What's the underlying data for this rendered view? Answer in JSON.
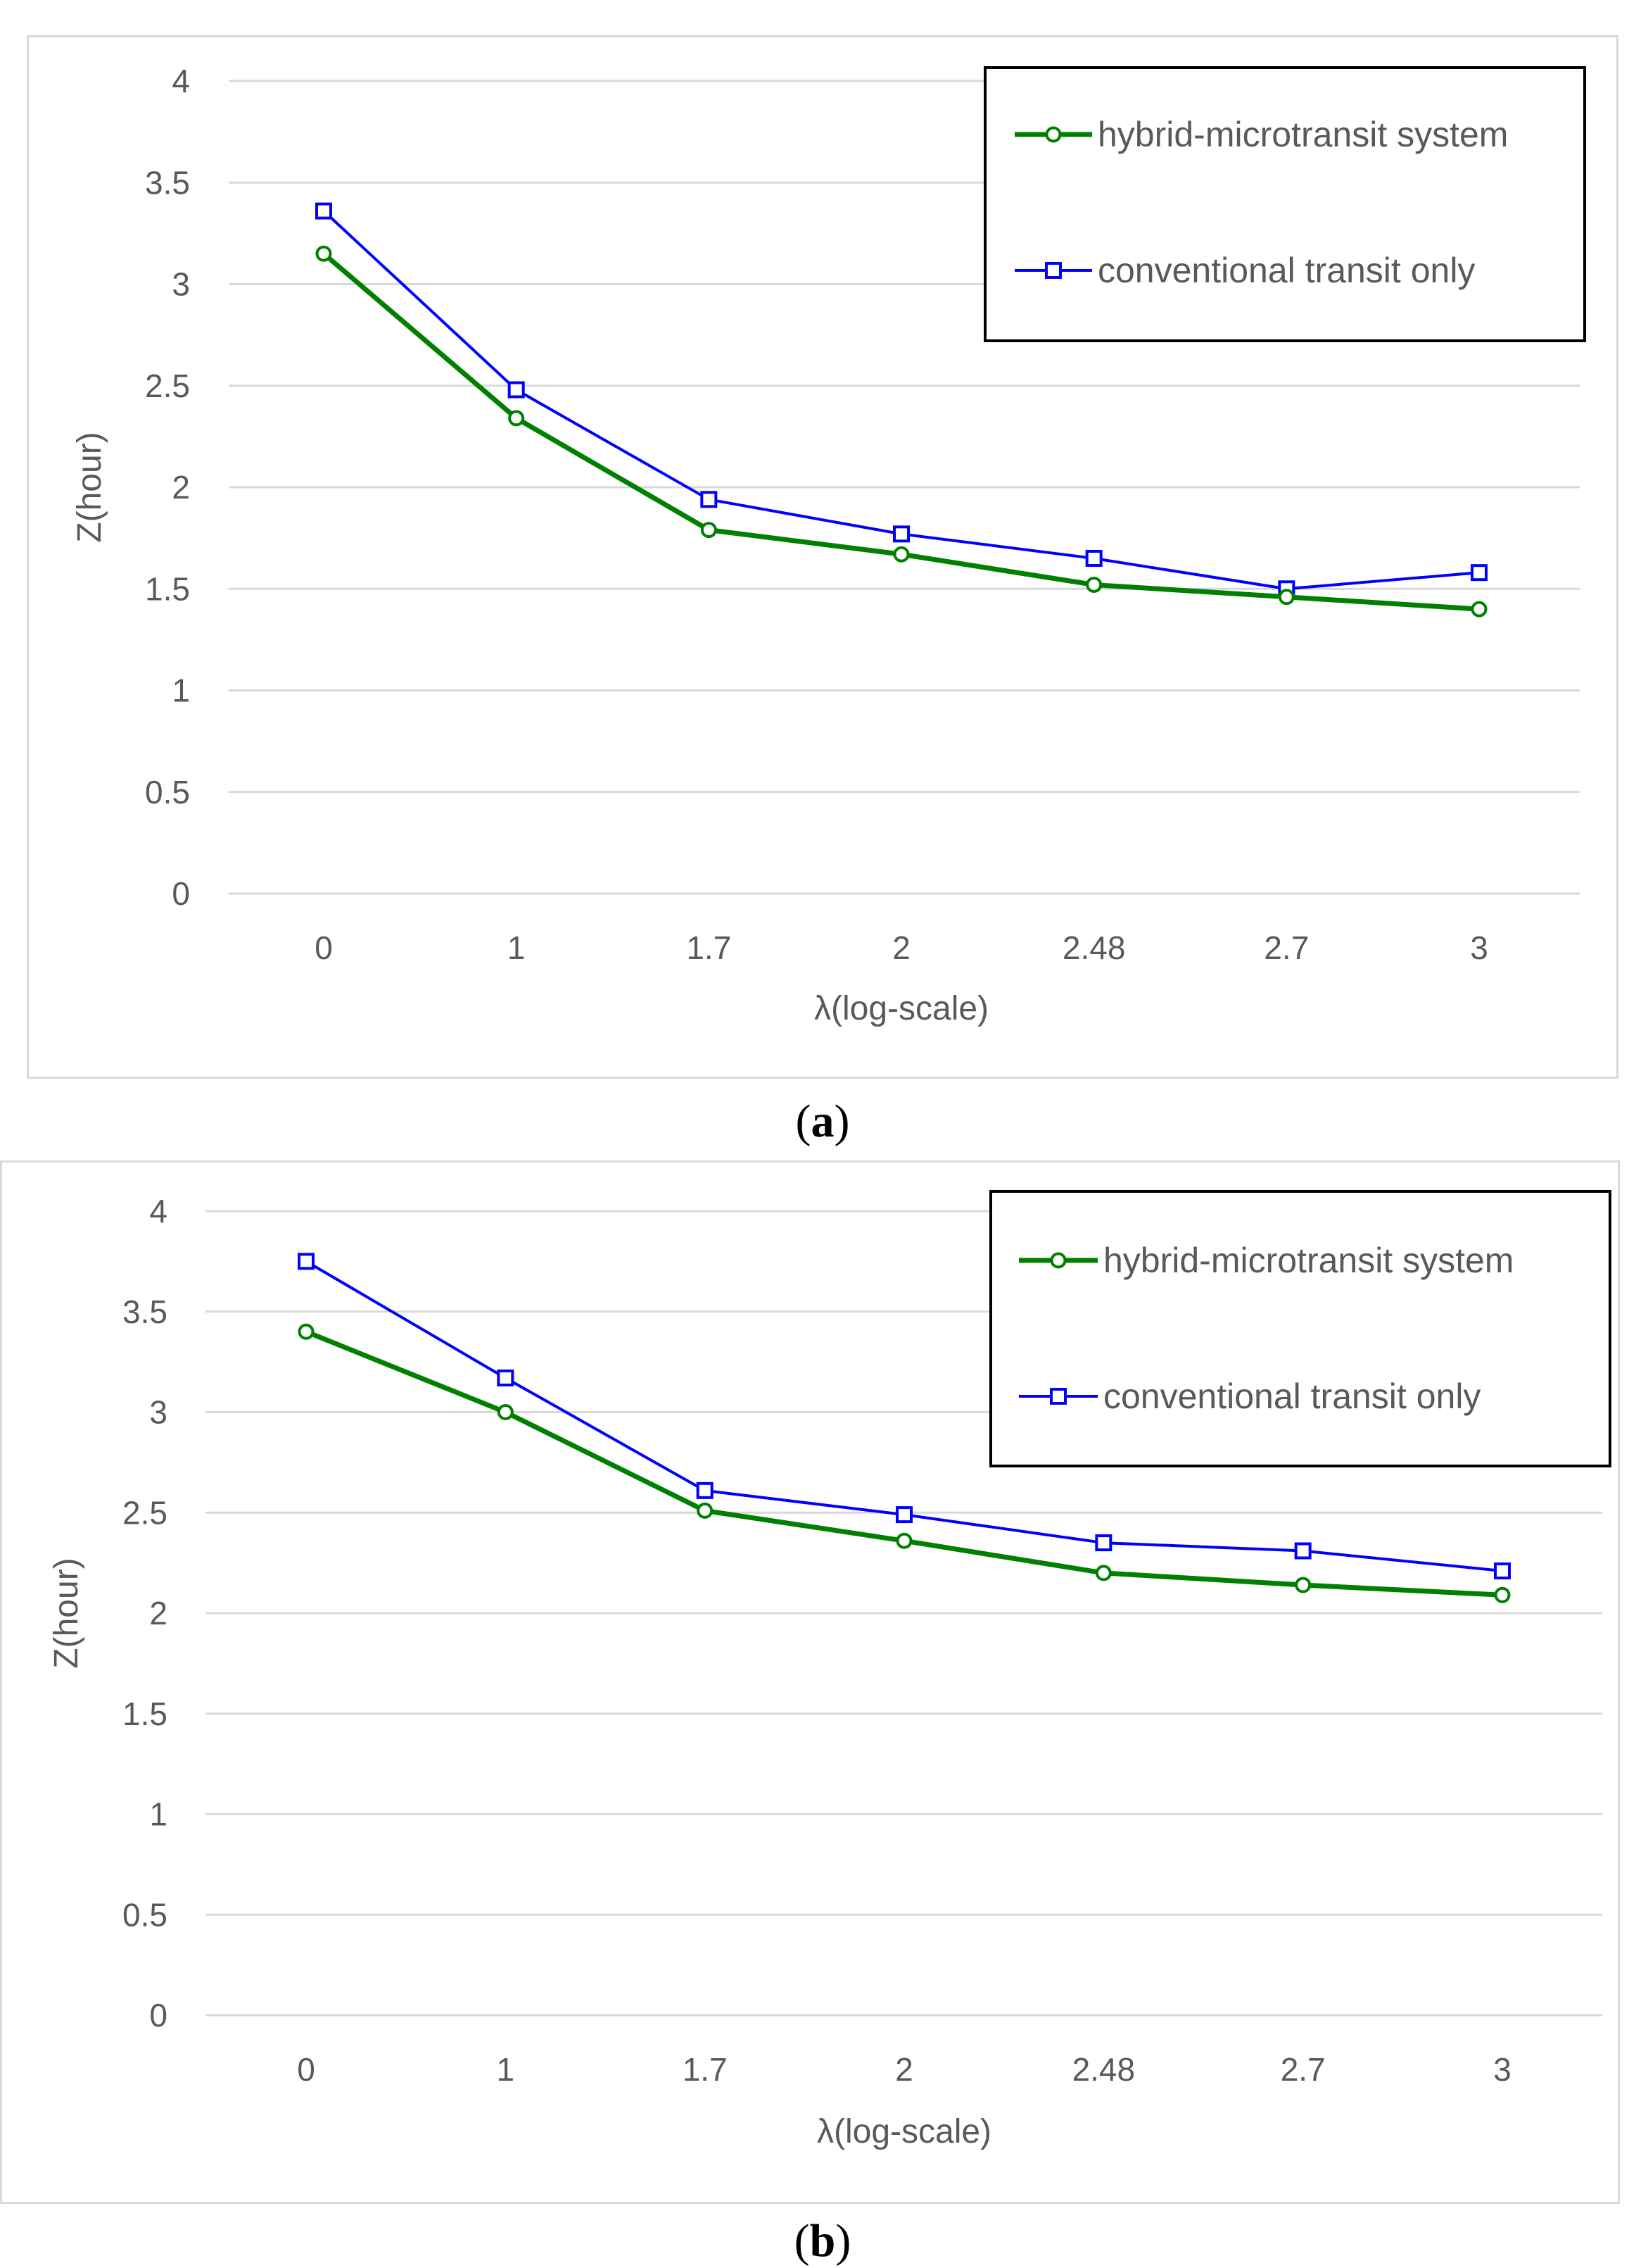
{
  "chart_data": [
    {
      "id": "a",
      "type": "line",
      "panel_label": "a",
      "categories": [
        "0",
        "1",
        "1.7",
        "2",
        "2.48",
        "2.7",
        "3"
      ],
      "series": [
        {
          "name": "hybrid-microtransit system",
          "color": "#008000",
          "marker": "circle",
          "values": [
            3.15,
            2.34,
            1.79,
            1.67,
            1.52,
            1.46,
            1.4
          ]
        },
        {
          "name": "conventional transit only",
          "color": "#0000ff",
          "marker": "square",
          "values": [
            3.36,
            2.48,
            1.94,
            1.77,
            1.65,
            1.5,
            1.58
          ]
        }
      ],
      "xlabel": "λ(log-scale)",
      "ylabel": "Z(hour)",
      "ylim": [
        0,
        4
      ],
      "yticks": [
        0,
        0.5,
        1,
        1.5,
        2,
        2.5,
        3,
        3.5,
        4
      ],
      "ytick_labels": [
        "0",
        "0.5",
        "1",
        "1.5",
        "2",
        "2.5",
        "3",
        "3.5",
        "4"
      ],
      "grid": true,
      "legend_position": "top-right"
    },
    {
      "id": "b",
      "type": "line",
      "panel_label": "b",
      "categories": [
        "0",
        "1",
        "1.7",
        "2",
        "2.48",
        "2.7",
        "3"
      ],
      "series": [
        {
          "name": "hybrid-microtransit system",
          "color": "#008000",
          "marker": "circle",
          "values": [
            3.4,
            3.0,
            2.51,
            2.36,
            2.2,
            2.14,
            2.09
          ]
        },
        {
          "name": "conventional transit only",
          "color": "#0000ff",
          "marker": "square",
          "values": [
            3.75,
            3.17,
            2.61,
            2.49,
            2.35,
            2.31,
            2.21
          ]
        }
      ],
      "xlabel": "λ(log-scale)",
      "ylabel": "Z(hour)",
      "ylim": [
        0,
        4
      ],
      "yticks": [
        0,
        0.5,
        1,
        1.5,
        2,
        2.5,
        3,
        3.5,
        4
      ],
      "ytick_labels": [
        "0",
        "0.5",
        "1",
        "1.5",
        "2",
        "2.5",
        "3",
        "3.5",
        "4"
      ],
      "grid": true,
      "legend_position": "top-right"
    }
  ]
}
